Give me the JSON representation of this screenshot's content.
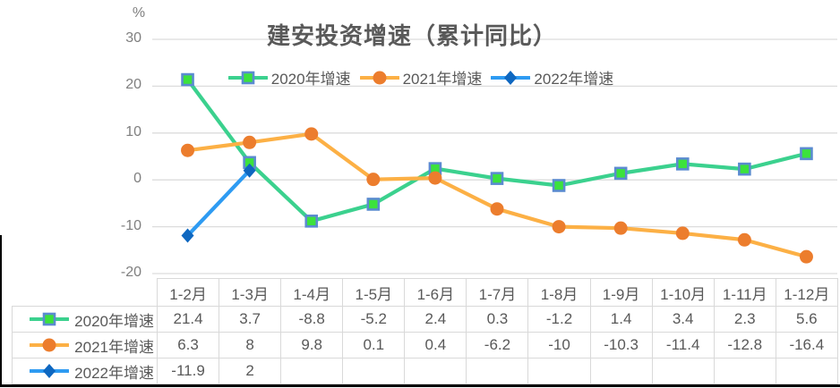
{
  "chart_data": {
    "type": "line",
    "title": "建安投资增速（累计同比）",
    "y_unit": "%",
    "ylim": [
      -20,
      30
    ],
    "y_ticks": [
      30,
      20,
      10,
      0,
      -10,
      -20
    ],
    "grid": true,
    "legend_position": "top",
    "categories": [
      "1-2月",
      "1-3月",
      "1-4月",
      "1-5月",
      "1-6月",
      "1-7月",
      "1-8月",
      "1-9月",
      "1-10月",
      "1-11月",
      "1-12月"
    ],
    "series": [
      {
        "name": "2020年增速",
        "marker": "square",
        "line_color": "#3bd18e",
        "marker_color": "#3ce23c",
        "marker_border": "#5b8bd0",
        "values": [
          21.4,
          3.7,
          -8.8,
          -5.2,
          2.4,
          0.3,
          -1.2,
          1.4,
          3.4,
          2.3,
          5.6
        ]
      },
      {
        "name": "2021年增速",
        "marker": "circle",
        "line_color": "#fcb045",
        "marker_color": "#ec7d2d",
        "marker_border": "",
        "values": [
          6.3,
          8,
          9.8,
          0.1,
          0.4,
          -6.2,
          -10,
          -10.3,
          -11.4,
          -12.8,
          -16.4
        ]
      },
      {
        "name": "2022年增速",
        "marker": "diamond",
        "line_color": "#2e9bf2",
        "marker_color": "#0e67c0",
        "marker_border": "",
        "values": [
          -11.9,
          2,
          null,
          null,
          null,
          null,
          null,
          null,
          null,
          null,
          null
        ]
      }
    ]
  },
  "table": {
    "header": [
      "1-2月",
      "1-3月",
      "1-4月",
      "1-5月",
      "1-6月",
      "1-7月",
      "1-8月",
      "1-9月",
      "1-10月",
      "1-11月",
      "1-12月"
    ],
    "rows": [
      {
        "label": "2020年增速",
        "cells": [
          "21.4",
          "3.7",
          "-8.8",
          "-5.2",
          "2.4",
          "0.3",
          "-1.2",
          "1.4",
          "3.4",
          "2.3",
          "5.6"
        ]
      },
      {
        "label": "2021年增速",
        "cells": [
          "6.3",
          "8",
          "9.8",
          "0.1",
          "0.4",
          "-6.2",
          "-10",
          "-10.3",
          "-11.4",
          "-12.8",
          "-16.4"
        ]
      },
      {
        "label": "2022年增速",
        "cells": [
          "-11.9",
          "2",
          "",
          "",
          "",
          "",
          "",
          "",
          "",
          "",
          ""
        ]
      }
    ]
  },
  "colors": {
    "grid_line": "#dcdcdc",
    "axis_text": "#7f7f7f",
    "table_text": "#595959",
    "table_border": "#d9d9d9",
    "title_text": "#595959"
  }
}
